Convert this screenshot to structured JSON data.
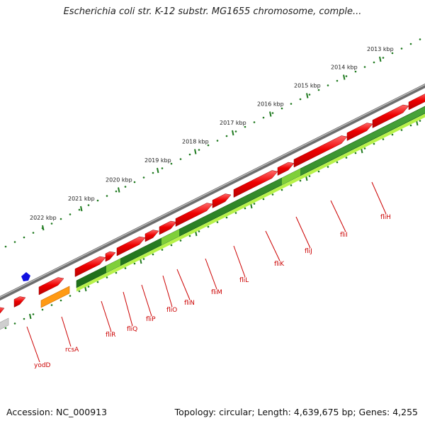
{
  "title": "Escherichia coli str. K-12 substr. MG1655 chromosome, comple...",
  "footer": {
    "accession": "Accession: NC_000913",
    "summary": "Topology: circular; Length: 4,639,675 bp; Genes: 4,255"
  },
  "ticks": [
    "2013 kbp",
    "2014 kbp",
    "2015 kbp",
    "2016 kbp",
    "2017 kbp",
    "2018 kbp",
    "2019 kbp",
    "2020 kbp",
    "2021 kbp",
    "2022 kbp"
  ],
  "genes": [
    "fliH",
    "fliI",
    "fliJ",
    "fliK",
    "fliL",
    "fliM",
    "fliN",
    "fliO",
    "fliP",
    "fliQ",
    "fliR",
    "rcsA",
    "yodD"
  ],
  "colors": {
    "backbone": "#8a8a8a",
    "gene_red": "#e60000",
    "cds_green": "#2e8b22",
    "cds_lightgreen": "#b8f24a",
    "orange": "#ff9a14",
    "tick_green": "#1f7a1f",
    "label_red": "#cc0000",
    "marker_blue": "#1010e0"
  }
}
